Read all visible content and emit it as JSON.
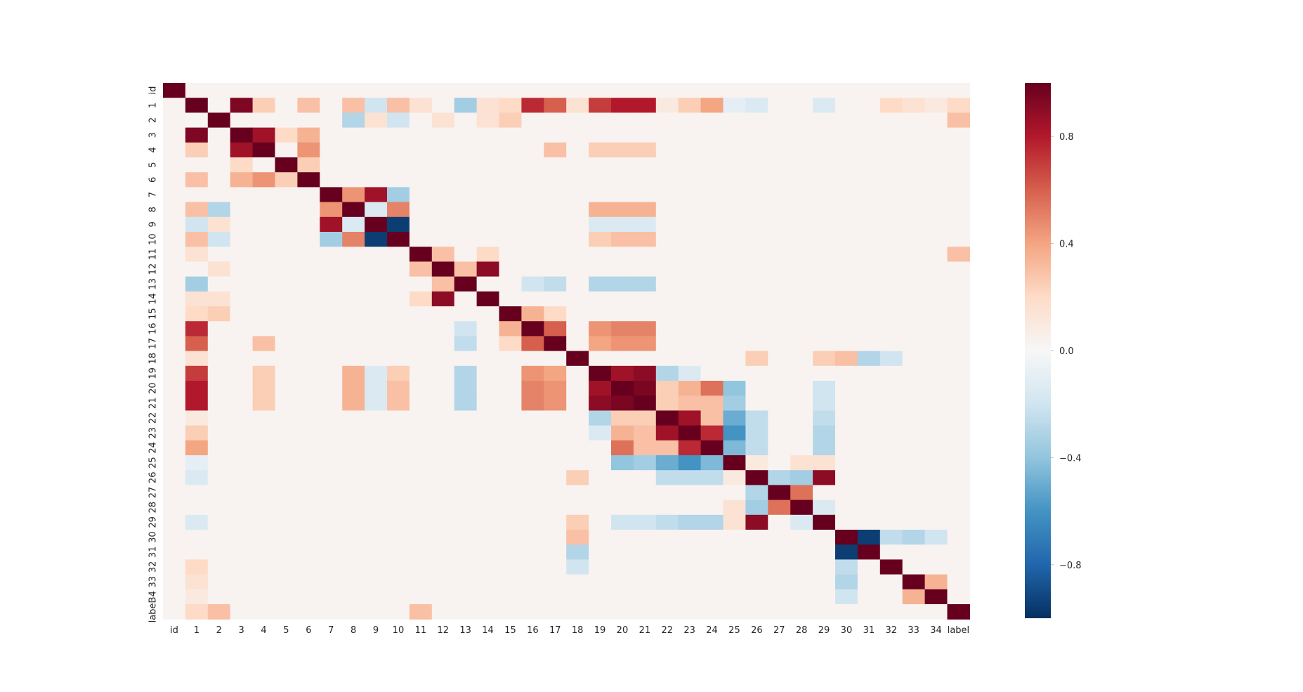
{
  "chart_data": {
    "type": "heatmap",
    "title": "",
    "labels": [
      "id",
      "1",
      "2",
      "3",
      "4",
      "5",
      "6",
      "7",
      "8",
      "9",
      "10",
      "11",
      "12",
      "13",
      "14",
      "15",
      "16",
      "17",
      "18",
      "19",
      "20",
      "21",
      "22",
      "23",
      "24",
      "25",
      "26",
      "27",
      "28",
      "29",
      "30",
      "31",
      "32",
      "33",
      "34",
      "label"
    ],
    "colorbar": {
      "vmin": -1.0,
      "vmax": 1.0,
      "ticks": [
        0.8,
        0.4,
        0.0,
        -0.4,
        -0.8
      ],
      "tick_labels": [
        "0.8",
        "0.4",
        "0.0",
        "−0.4",
        "−0.8"
      ],
      "colormap": "RdBu_r"
    },
    "cells": [
      [
        "1",
        "2",
        "3",
        0.94
      ],
      [
        "1",
        "4",
        0.25
      ],
      [
        "1",
        "6",
        0.3
      ],
      [
        "1",
        "8",
        0.3
      ],
      [
        "1",
        "9",
        -0.2
      ],
      [
        "1",
        "10",
        0.3
      ],
      [
        "1",
        "11",
        0.15
      ],
      [
        "1",
        "13",
        -0.35
      ],
      [
        "1",
        "14",
        0.15
      ],
      [
        "1",
        "15",
        0.2
      ],
      [
        "1",
        "16",
        0.75
      ],
      [
        "1",
        "17",
        0.6
      ],
      [
        "1",
        "18",
        0.15
      ],
      [
        "1",
        "19",
        0.7
      ],
      [
        "1",
        "20",
        0.8
      ],
      [
        "1",
        "21",
        0.8
      ],
      [
        "1",
        "22",
        0.1
      ],
      [
        "1",
        "23",
        0.25
      ],
      [
        "1",
        "24",
        0.4
      ],
      [
        "1",
        "25",
        -0.1
      ],
      [
        "1",
        "26",
        -0.15
      ],
      [
        "1",
        "29",
        -0.15
      ],
      [
        "1",
        "32",
        0.2
      ],
      [
        "1",
        "33",
        0.15
      ],
      [
        "1",
        "34",
        0.1
      ],
      [
        "1",
        "label",
        0.2
      ],
      [
        "2",
        "8",
        -0.3
      ],
      [
        "2",
        "9",
        0.15
      ],
      [
        "2",
        "10",
        -0.2
      ],
      [
        "2",
        "12",
        0.15
      ],
      [
        "2",
        "14",
        0.15
      ],
      [
        "2",
        "15",
        0.25
      ],
      [
        "2",
        "label",
        0.3
      ],
      [
        "3",
        "4",
        0.85
      ],
      [
        "3",
        "6",
        0.35
      ],
      [
        "3",
        "5",
        0.2
      ],
      [
        "4",
        "6",
        0.45
      ],
      [
        "4",
        "17",
        0.3
      ],
      [
        "4",
        "19",
        0.25
      ],
      [
        "4",
        "20",
        0.25
      ],
      [
        "4",
        "21",
        0.25
      ],
      [
        "5",
        "6",
        0.25
      ],
      [
        "7",
        "8",
        0.45
      ],
      [
        "7",
        "9",
        0.85
      ],
      [
        "7",
        "10",
        -0.35
      ],
      [
        "8",
        "9",
        -0.15
      ],
      [
        "8",
        "10",
        0.5
      ],
      [
        "8",
        "19",
        0.35
      ],
      [
        "8",
        "20",
        0.35
      ],
      [
        "8",
        "21",
        0.35
      ],
      [
        "9",
        "10",
        -0.95
      ],
      [
        "9",
        "19",
        -0.15
      ],
      [
        "9",
        "20",
        -0.15
      ],
      [
        "9",
        "21",
        -0.15
      ],
      [
        "10",
        "19",
        0.25
      ],
      [
        "10",
        "20",
        0.3
      ],
      [
        "10",
        "21",
        0.3
      ],
      [
        "11",
        "12",
        0.3
      ],
      [
        "11",
        "14",
        0.2
      ],
      [
        "11",
        "label",
        0.3
      ],
      [
        "12",
        "13",
        0.3
      ],
      [
        "12",
        "14",
        0.9
      ],
      [
        "13",
        "16",
        -0.2
      ],
      [
        "13",
        "17",
        -0.25
      ],
      [
        "13",
        "19",
        -0.3
      ],
      [
        "13",
        "20",
        -0.3
      ],
      [
        "13",
        "21",
        -0.3
      ],
      [
        "15",
        "16",
        0.35
      ],
      [
        "15",
        "17",
        0.2
      ],
      [
        "16",
        "17",
        0.6
      ],
      [
        "16",
        "19",
        0.45
      ],
      [
        "16",
        "20",
        0.5
      ],
      [
        "16",
        "21",
        0.5
      ],
      [
        "17",
        "19",
        0.4
      ],
      [
        "17",
        "20",
        0.45
      ],
      [
        "17",
        "21",
        0.45
      ],
      [
        "18",
        "26",
        0.25
      ],
      [
        "18",
        "29",
        0.25
      ],
      [
        "18",
        "30",
        0.3
      ],
      [
        "18",
        "31",
        -0.3
      ],
      [
        "18",
        "32",
        -0.2
      ],
      [
        "19",
        "20",
        0.85
      ],
      [
        "19",
        "21",
        0.9
      ],
      [
        "19",
        "22",
        -0.3
      ],
      [
        "19",
        "23",
        -0.15
      ],
      [
        "20",
        "21",
        0.95
      ],
      [
        "20",
        "22",
        0.25
      ],
      [
        "20",
        "23",
        0.35
      ],
      [
        "20",
        "24",
        0.55
      ],
      [
        "20",
        "25",
        -0.4
      ],
      [
        "20",
        "29",
        -0.2
      ],
      [
        "21",
        "22",
        0.25
      ],
      [
        "21",
        "23",
        0.3
      ],
      [
        "21",
        "24",
        0.3
      ],
      [
        "21",
        "25",
        -0.35
      ],
      [
        "21",
        "29",
        -0.2
      ],
      [
        "22",
        "23",
        0.85
      ],
      [
        "22",
        "24",
        0.3
      ],
      [
        "22",
        "25",
        -0.5
      ],
      [
        "22",
        "26",
        -0.25
      ],
      [
        "22",
        "29",
        -0.25
      ],
      [
        "23",
        "24",
        0.75
      ],
      [
        "23",
        "25",
        -0.6
      ],
      [
        "23",
        "26",
        -0.25
      ],
      [
        "23",
        "29",
        -0.3
      ],
      [
        "24",
        "25",
        -0.45
      ],
      [
        "24",
        "26",
        -0.25
      ],
      [
        "24",
        "29",
        -0.3
      ],
      [
        "25",
        "26",
        0.1
      ],
      [
        "25",
        "28",
        0.15
      ],
      [
        "25",
        "29",
        0.15
      ],
      [
        "26",
        "27",
        -0.3
      ],
      [
        "26",
        "28",
        -0.35
      ],
      [
        "26",
        "29",
        0.9
      ],
      [
        "27",
        "28",
        0.55
      ],
      [
        "28",
        "29",
        -0.15
      ],
      [
        "30",
        "31",
        -0.95
      ],
      [
        "30",
        "32",
        -0.25
      ],
      [
        "30",
        "33",
        -0.3
      ],
      [
        "30",
        "34",
        -0.2
      ],
      [
        "33",
        "34",
        0.35
      ]
    ]
  }
}
